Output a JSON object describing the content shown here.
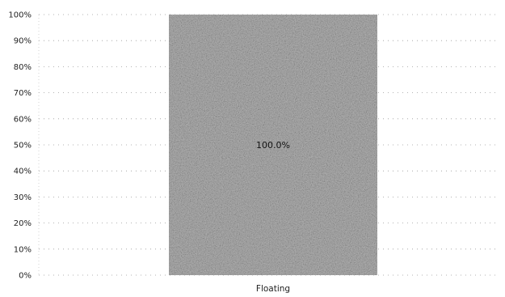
{
  "chart_data": {
    "type": "bar",
    "categories": [
      "Floating"
    ],
    "series": [
      {
        "values": [
          100.0
        ],
        "color": "#b3b3b3",
        "data_labels": [
          "100.0%"
        ]
      }
    ],
    "ylim": [
      0,
      100
    ],
    "yticks": [
      0,
      10,
      20,
      30,
      40,
      50,
      60,
      70,
      80,
      90,
      100
    ],
    "ytick_labels": [
      "0%",
      "10%",
      "20%",
      "30%",
      "40%",
      "50%",
      "60%",
      "70%",
      "80%",
      "90%",
      "100%"
    ],
    "grid": true,
    "legend": "none"
  }
}
